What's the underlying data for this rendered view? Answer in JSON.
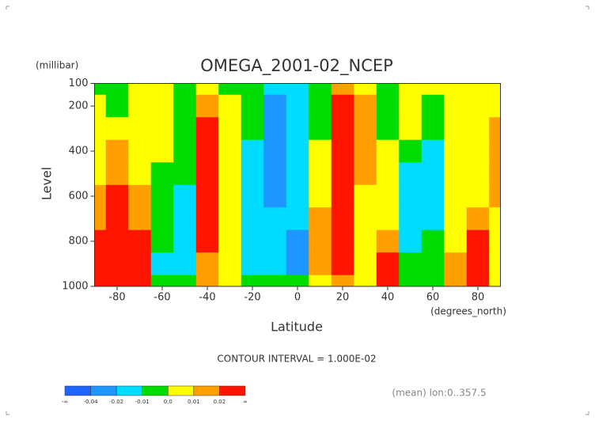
{
  "chart_data": {
    "type": "contour",
    "title": "OMEGA_2001-02_NCEP",
    "y_unit": "(millibar)",
    "y_label": "Level",
    "x_label": "Latitude",
    "x_unit": "(degrees_north)",
    "subtitle": "CONTOUR INTERVAL = 1.000E-02",
    "note": "(mean) lon:0..357.5",
    "x": [
      -90,
      -80,
      -70,
      -60,
      -50,
      -40,
      -30,
      -20,
      -10,
      0,
      10,
      20,
      30,
      40,
      50,
      60,
      70,
      80,
      90
    ],
    "y": [
      100,
      200,
      300,
      400,
      500,
      600,
      700,
      800,
      900,
      1000
    ],
    "z": [
      [
        -0.005,
        -0.005,
        0.005,
        0.005,
        -0.005,
        0.005,
        -0.005,
        -0.005,
        -0.015,
        -0.015,
        -0.005,
        0.015,
        0.005,
        -0.005,
        0.005,
        0.005,
        0.005,
        0.005,
        0.005
      ],
      [
        0.005,
        -0.005,
        0.005,
        0.005,
        -0.005,
        0.015,
        0.005,
        -0.005,
        -0.03,
        -0.015,
        -0.005,
        0.03,
        0.015,
        -0.005,
        0.005,
        -0.005,
        0.005,
        0.005,
        0.005
      ],
      [
        0.005,
        0.005,
        0.005,
        0.005,
        -0.005,
        0.03,
        0.005,
        -0.005,
        -0.03,
        -0.015,
        -0.005,
        0.03,
        0.015,
        -0.005,
        0.005,
        -0.005,
        0.005,
        0.005,
        0.015
      ],
      [
        0.005,
        0.015,
        0.005,
        0.005,
        -0.005,
        0.03,
        0.005,
        -0.015,
        -0.03,
        -0.015,
        0.005,
        0.03,
        0.015,
        0.005,
        -0.005,
        -0.015,
        0.005,
        0.005,
        0.015
      ],
      [
        0.005,
        0.015,
        0.005,
        -0.005,
        -0.005,
        0.03,
        0.005,
        -0.015,
        -0.03,
        -0.015,
        0.005,
        0.03,
        0.015,
        0.005,
        -0.015,
        -0.015,
        0.005,
        0.005,
        0.015
      ],
      [
        0.015,
        0.03,
        0.015,
        -0.005,
        -0.015,
        0.03,
        0.005,
        -0.015,
        -0.03,
        -0.015,
        0.005,
        0.03,
        0.005,
        0.005,
        -0.015,
        -0.015,
        0.005,
        0.005,
        0.015
      ],
      [
        0.015,
        0.03,
        0.015,
        -0.005,
        -0.015,
        0.03,
        0.005,
        -0.015,
        -0.015,
        -0.015,
        0.015,
        0.03,
        0.005,
        0.005,
        -0.015,
        -0.015,
        0.005,
        0.015,
        0.005
      ],
      [
        0.03,
        0.03,
        0.03,
        -0.005,
        -0.015,
        0.03,
        0.005,
        -0.015,
        -0.015,
        -0.03,
        0.015,
        0.03,
        0.005,
        0.015,
        -0.015,
        -0.005,
        0.005,
        0.03,
        0.005
      ],
      [
        0.03,
        0.03,
        0.03,
        -0.015,
        -0.015,
        0.015,
        0.005,
        -0.015,
        -0.015,
        -0.03,
        0.015,
        0.03,
        0.005,
        0.03,
        -0.005,
        -0.005,
        0.015,
        0.03,
        0.005
      ],
      [
        0.03,
        0.03,
        0.03,
        -0.005,
        -0.005,
        0.015,
        0.005,
        -0.005,
        -0.005,
        -0.005,
        0.005,
        0.015,
        0.005,
        0.03,
        -0.005,
        -0.005,
        0.015,
        0.03,
        0.005
      ]
    ],
    "xlim": [
      -90,
      90
    ],
    "ylim": [
      1000,
      100
    ],
    "xticks": [
      -80,
      -60,
      -40,
      -20,
      0,
      20,
      40,
      60,
      80
    ],
    "yticks": [
      100,
      200,
      400,
      600,
      800,
      1000
    ],
    "colorbar": {
      "levels": [
        {
          "label": "-∞"
        },
        -0.04,
        -0.02,
        -0.01,
        {
          "value": 0,
          "label": "0.0"
        },
        0.01,
        0.02,
        {
          "label": "∞"
        }
      ],
      "colors": [
        "#1e64ff",
        "#1e96ff",
        "#00dcff",
        "#00dc00",
        "#ffff00",
        "#ffa000",
        "#ff1400"
      ]
    }
  }
}
